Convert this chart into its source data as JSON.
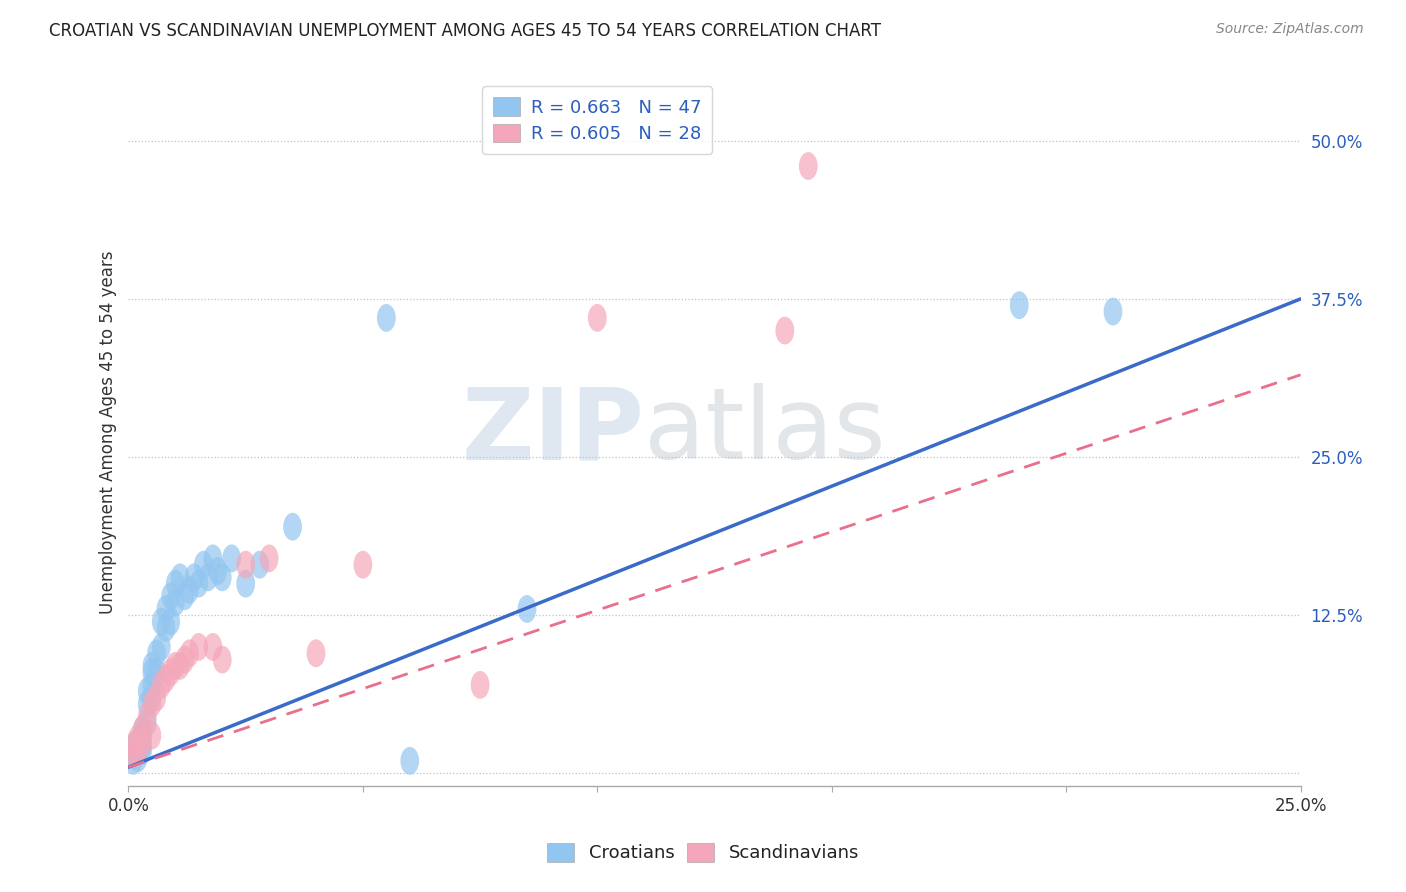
{
  "title": "CROATIAN VS SCANDINAVIAN UNEMPLOYMENT AMONG AGES 45 TO 54 YEARS CORRELATION CHART",
  "source": "Source: ZipAtlas.com",
  "ylabel": "Unemployment Among Ages 45 to 54 years",
  "xlim": [
    0.0,
    0.25
  ],
  "ylim": [
    -0.01,
    0.55
  ],
  "xticks": [
    0.0,
    0.05,
    0.1,
    0.15,
    0.2,
    0.25
  ],
  "xticklabels": [
    "0.0%",
    "",
    "",
    "",
    "",
    "25.0%"
  ],
  "yticks": [
    0.0,
    0.125,
    0.25,
    0.375,
    0.5
  ],
  "yticklabels": [
    "",
    "12.5%",
    "25.0%",
    "37.5%",
    "50.0%"
  ],
  "croatian_R": 0.663,
  "croatian_N": 47,
  "scandinavian_R": 0.605,
  "scandinavian_N": 28,
  "blue_color": "#92C5EF",
  "pink_color": "#F4A7BA",
  "blue_line_color": "#3A6BC9",
  "pink_line_color": "#E8708A",
  "legend_text_color": "#2B5EBD",
  "watermark": "ZIPatlas",
  "croatian_x": [
    0.001,
    0.001,
    0.001,
    0.002,
    0.002,
    0.002,
    0.002,
    0.003,
    0.003,
    0.003,
    0.003,
    0.004,
    0.004,
    0.004,
    0.005,
    0.005,
    0.005,
    0.005,
    0.006,
    0.006,
    0.007,
    0.007,
    0.008,
    0.008,
    0.009,
    0.009,
    0.01,
    0.01,
    0.011,
    0.012,
    0.013,
    0.014,
    0.015,
    0.016,
    0.017,
    0.018,
    0.019,
    0.02,
    0.022,
    0.025,
    0.028,
    0.035,
    0.055,
    0.06,
    0.085,
    0.19,
    0.21
  ],
  "croatian_y": [
    0.01,
    0.015,
    0.02,
    0.012,
    0.018,
    0.022,
    0.025,
    0.018,
    0.022,
    0.03,
    0.035,
    0.04,
    0.055,
    0.065,
    0.06,
    0.07,
    0.08,
    0.085,
    0.08,
    0.095,
    0.1,
    0.12,
    0.115,
    0.13,
    0.12,
    0.14,
    0.135,
    0.15,
    0.155,
    0.14,
    0.145,
    0.155,
    0.15,
    0.165,
    0.155,
    0.17,
    0.16,
    0.155,
    0.17,
    0.15,
    0.165,
    0.195,
    0.36,
    0.01,
    0.13,
    0.37,
    0.365
  ],
  "scandinavian_x": [
    0.001,
    0.001,
    0.002,
    0.002,
    0.003,
    0.003,
    0.004,
    0.005,
    0.005,
    0.006,
    0.007,
    0.008,
    0.009,
    0.01,
    0.011,
    0.012,
    0.013,
    0.015,
    0.018,
    0.02,
    0.025,
    0.03,
    0.04,
    0.05,
    0.075,
    0.1,
    0.14,
    0.145
  ],
  "scandinavian_y": [
    0.015,
    0.022,
    0.018,
    0.028,
    0.025,
    0.035,
    0.045,
    0.03,
    0.055,
    0.06,
    0.07,
    0.075,
    0.08,
    0.085,
    0.085,
    0.09,
    0.095,
    0.1,
    0.1,
    0.09,
    0.165,
    0.17,
    0.095,
    0.165,
    0.07,
    0.36,
    0.35,
    0.48
  ],
  "blue_line_x0": 0.0,
  "blue_line_y0": 0.005,
  "blue_line_x1": 0.25,
  "blue_line_y1": 0.375,
  "pink_line_x0": 0.0,
  "pink_line_y0": 0.005,
  "pink_line_x1": 0.25,
  "pink_line_y1": 0.315
}
